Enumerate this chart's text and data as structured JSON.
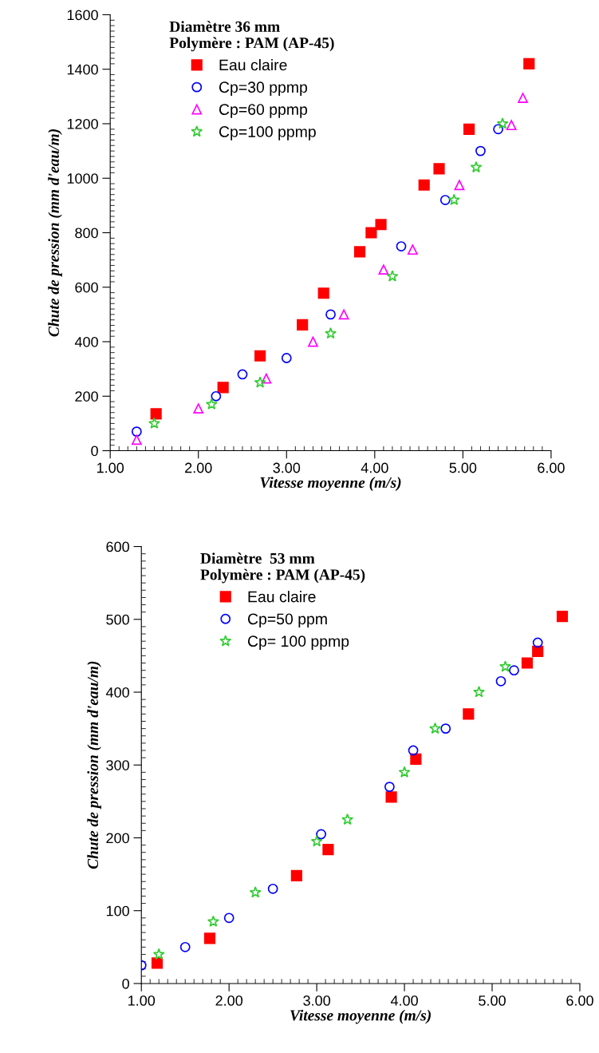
{
  "chart_data": [
    {
      "type": "scatter",
      "xlabel": "Vitesse moyenne (m/s)",
      "ylabel": "Chute de pression (mm d'eau/m)",
      "legend_title": "Diamètre 36 mm\nPolymère : PAM (AP-45)",
      "legend": "top left",
      "grid": false,
      "xlim": [
        1,
        6
      ],
      "xticks": [
        {
          "value": 1,
          "label": "1.00"
        },
        {
          "value": 2,
          "label": "2.00"
        },
        {
          "value": 3,
          "label": "3.00"
        },
        {
          "value": 4,
          "label": "4.00"
        },
        {
          "value": 5,
          "label": "5.00"
        },
        {
          "value": 6,
          "label": "6.00"
        }
      ],
      "ylim": [
        0,
        1600
      ],
      "yticks": [
        0,
        200,
        400,
        600,
        800,
        1000,
        1200,
        1400,
        1600
      ],
      "series": [
        {
          "name": "Eau claire",
          "color": "#ff0000",
          "marker": "square",
          "x": [
            1.52,
            2.28,
            2.7,
            3.18,
            3.42,
            3.83,
            3.96,
            4.07,
            4.56,
            4.73,
            5.07,
            5.75
          ],
          "values": [
            135,
            232,
            348,
            462,
            578,
            730,
            800,
            830,
            975,
            1035,
            1180,
            1420
          ]
        },
        {
          "name": "Cp=30 ppmp",
          "color": "#0000ff",
          "marker": "circle",
          "x": [
            1.3,
            2.2,
            2.5,
            3.0,
            3.5,
            4.3,
            4.8,
            5.2,
            5.4
          ],
          "values": [
            70,
            200,
            280,
            340,
            500,
            750,
            920,
            1100,
            1180
          ]
        },
        {
          "name": "Cp=60 ppmp",
          "color": "#ff00ff",
          "marker": "triangle",
          "x": [
            1.3,
            2.0,
            2.77,
            3.3,
            3.65,
            4.1,
            4.43,
            4.96,
            5.55,
            5.68
          ],
          "values": [
            40,
            155,
            265,
            400,
            500,
            665,
            738,
            975,
            1195,
            1295
          ]
        },
        {
          "name": "Cp=100 ppmp",
          "color": "#33cc33",
          "marker": "star",
          "x": [
            1.5,
            2.15,
            2.7,
            3.5,
            4.2,
            4.9,
            5.15,
            5.45
          ],
          "values": [
            100,
            170,
            250,
            430,
            640,
            920,
            1040,
            1200
          ]
        }
      ]
    },
    {
      "type": "scatter",
      "xlabel": "Vitesse moyenne (m/s)",
      "ylabel": "Chute de pression (mm d'eau/m)",
      "legend_title": "Diamètre  53 mm\nPolymère : PAM (AP-45)",
      "legend": "top left",
      "grid": false,
      "xlim": [
        1,
        6
      ],
      "xticks": [
        {
          "value": 1,
          "label": "1.00"
        },
        {
          "value": 2,
          "label": "2.00"
        },
        {
          "value": 3,
          "label": "3.00"
        },
        {
          "value": 4,
          "label": "4.00"
        },
        {
          "value": 5,
          "label": "5.00"
        },
        {
          "value": 6,
          "label": "6.00"
        }
      ],
      "ylim": [
        0,
        600
      ],
      "yticks": [
        0,
        100,
        200,
        300,
        400,
        500,
        600
      ],
      "series": [
        {
          "name": "Eau claire",
          "color": "#ff0000",
          "marker": "square",
          "x": [
            1.18,
            1.78,
            2.77,
            3.13,
            3.85,
            4.13,
            4.73,
            5.4,
            5.52,
            5.8
          ],
          "values": [
            28,
            62,
            148,
            184,
            256,
            308,
            370,
            440,
            456,
            504
          ]
        },
        {
          "name": "Cp=50 ppm",
          "color": "#0000ff",
          "marker": "circle",
          "x": [
            1.0,
            1.5,
            2.0,
            2.5,
            3.05,
            3.83,
            4.1,
            4.47,
            5.1,
            5.25,
            5.52
          ],
          "values": [
            25,
            50,
            90,
            130,
            205,
            270,
            320,
            350,
            415,
            430,
            468
          ]
        },
        {
          "name": "Cp= 100 ppmp",
          "color": "#33cc33",
          "marker": "star",
          "x": [
            1.2,
            1.82,
            2.3,
            3.0,
            3.35,
            4.0,
            4.35,
            4.85,
            5.15
          ],
          "values": [
            40,
            85,
            125,
            195,
            225,
            290,
            350,
            400,
            435
          ]
        }
      ]
    }
  ]
}
